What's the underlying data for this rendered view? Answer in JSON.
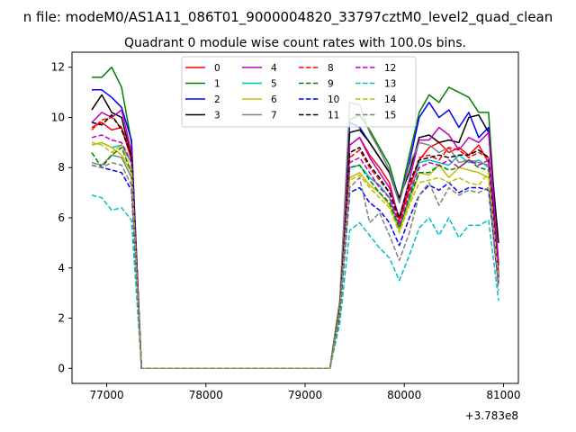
{
  "figure": {
    "suptitle": "n file: modeM0/AS1A11_086T01_9000004820_33797cztM0_level2_quad_clean",
    "title": "Quadrant 0 module wise count rates with 100.0s bins."
  },
  "chart_data": {
    "type": "line",
    "title": "Quadrant 0 module wise count rates with 100.0s bins.",
    "xlabel": "",
    "ylabel": "",
    "x_offset_label": "+3.783e8",
    "xlim": [
      76650,
      81150
    ],
    "ylim": [
      -0.6,
      12.6
    ],
    "xticks": [
      77000,
      78000,
      79000,
      80000,
      81000
    ],
    "xtick_labels": [
      "77000",
      "78000",
      "79000",
      "80000",
      "81000"
    ],
    "yticks": [
      0,
      2,
      4,
      6,
      8,
      10,
      12
    ],
    "ytick_labels": [
      "0",
      "2",
      "4",
      "6",
      "8",
      "10",
      "12"
    ],
    "grid": false,
    "legend": {
      "placement": "top-center",
      "columns": 4
    },
    "x": [
      76850,
      76950,
      77050,
      77150,
      77250,
      77350,
      77450,
      77550,
      77650,
      77750,
      77850,
      77950,
      78050,
      78150,
      78250,
      78350,
      78450,
      78550,
      78650,
      78750,
      78850,
      78950,
      79050,
      79150,
      79250,
      79350,
      79450,
      79550,
      79650,
      79750,
      79850,
      79950,
      80050,
      80150,
      80250,
      80350,
      80450,
      80550,
      80650,
      80750,
      80850,
      80950
    ],
    "series": [
      {
        "name": "0",
        "color": "#ff0000",
        "dash": "solid",
        "values": [
          9.6,
          9.8,
          9.5,
          9.6,
          8.3,
          0,
          0,
          0,
          0,
          0,
          0,
          0,
          0,
          0,
          0,
          0,
          0,
          0,
          0,
          0,
          0,
          0,
          0,
          0,
          0,
          2.5,
          8.9,
          9.2,
          8.5,
          8.0,
          7.4,
          5.9,
          7.2,
          8.3,
          8.8,
          9.0,
          8.6,
          8.8,
          8.5,
          8.9,
          8.2,
          3.8
        ]
      },
      {
        "name": "1",
        "color": "#008000",
        "dash": "solid",
        "values": [
          11.6,
          11.6,
          12.0,
          11.2,
          9.0,
          0,
          0,
          0,
          0,
          0,
          0,
          0,
          0,
          0,
          0,
          0,
          0,
          0,
          0,
          0,
          0,
          0,
          0,
          0,
          0,
          2.7,
          9.9,
          10.1,
          9.5,
          8.8,
          8.1,
          6.7,
          8.5,
          10.2,
          10.9,
          10.6,
          11.2,
          11.0,
          10.8,
          10.2,
          10.2,
          4.1
        ]
      },
      {
        "name": "2",
        "color": "#0000ff",
        "dash": "solid",
        "values": [
          11.1,
          11.1,
          10.8,
          10.4,
          9.1,
          0,
          0,
          0,
          0,
          0,
          0,
          0,
          0,
          0,
          0,
          0,
          0,
          0,
          0,
          0,
          0,
          0,
          0,
          0,
          0,
          2.6,
          9.8,
          9.6,
          9.0,
          8.4,
          7.8,
          6.6,
          8.2,
          10.0,
          10.6,
          10.0,
          10.3,
          9.6,
          10.2,
          9.2,
          9.6,
          3.6
        ]
      },
      {
        "name": "3",
        "color": "#000000",
        "dash": "solid",
        "values": [
          10.3,
          10.9,
          10.2,
          10.0,
          8.4,
          0,
          0,
          0,
          0,
          0,
          0,
          0,
          0,
          0,
          0,
          0,
          0,
          0,
          0,
          0,
          0,
          0,
          0,
          0,
          0,
          2.6,
          9.4,
          9.5,
          9.0,
          8.4,
          7.8,
          6.8,
          7.8,
          9.2,
          9.3,
          9.0,
          9.1,
          9.0,
          10.0,
          10.1,
          9.4,
          5.0
        ]
      },
      {
        "name": "4",
        "color": "#bf00bf",
        "dash": "solid",
        "values": [
          9.8,
          10.2,
          10.0,
          10.3,
          8.6,
          0,
          0,
          0,
          0,
          0,
          0,
          0,
          0,
          0,
          0,
          0,
          0,
          0,
          0,
          0,
          0,
          0,
          0,
          0,
          0,
          2.5,
          8.9,
          9.2,
          8.4,
          7.8,
          7.2,
          6.0,
          7.5,
          9.1,
          9.1,
          9.6,
          9.3,
          8.7,
          9.2,
          9.0,
          9.4,
          4.2
        ]
      },
      {
        "name": "5",
        "color": "#00bfbf",
        "dash": "solid",
        "values": [
          8.9,
          9.0,
          8.8,
          8.9,
          8.2,
          0,
          0,
          0,
          0,
          0,
          0,
          0,
          0,
          0,
          0,
          0,
          0,
          0,
          0,
          0,
          0,
          0,
          0,
          0,
          0,
          2.3,
          8.0,
          8.1,
          7.6,
          7.3,
          6.8,
          5.6,
          6.8,
          8.2,
          8.3,
          8.2,
          8.1,
          8.5,
          8.2,
          8.3,
          8.0,
          3.5
        ]
      },
      {
        "name": "6",
        "color": "#bfbf00",
        "dash": "solid",
        "values": [
          8.9,
          9.0,
          8.8,
          8.5,
          7.8,
          0,
          0,
          0,
          0,
          0,
          0,
          0,
          0,
          0,
          0,
          0,
          0,
          0,
          0,
          0,
          0,
          0,
          0,
          0,
          0,
          2.2,
          7.6,
          7.8,
          7.3,
          7.0,
          6.5,
          5.5,
          6.6,
          7.8,
          7.7,
          8.1,
          7.6,
          8.0,
          7.9,
          7.8,
          7.6,
          3.4
        ]
      },
      {
        "name": "7",
        "color": "#808080",
        "dash": "solid",
        "values": [
          8.2,
          8.1,
          8.5,
          8.4,
          7.6,
          0,
          0,
          0,
          0,
          0,
          0,
          0,
          0,
          0,
          0,
          0,
          0,
          0,
          0,
          0,
          0,
          0,
          0,
          0,
          0,
          2.7,
          10.6,
          10.5,
          9.4,
          8.7,
          7.9,
          6.6,
          8.1,
          9.0,
          8.9,
          8.6,
          8.8,
          8.2,
          8.3,
          8.2,
          8.1,
          3.6
        ]
      },
      {
        "name": "8",
        "color": "#ff0000",
        "dash": "dashed",
        "values": [
          9.5,
          9.9,
          10.0,
          9.6,
          8.6,
          0,
          0,
          0,
          0,
          0,
          0,
          0,
          0,
          0,
          0,
          0,
          0,
          0,
          0,
          0,
          0,
          0,
          0,
          0,
          0,
          2.4,
          8.4,
          8.7,
          8.0,
          7.5,
          7.0,
          5.8,
          7.1,
          8.4,
          8.5,
          8.3,
          8.8,
          8.7,
          8.4,
          8.6,
          8.4,
          3.7
        ]
      },
      {
        "name": "9",
        "color": "#008000",
        "dash": "dashed",
        "values": [
          8.6,
          8.0,
          8.5,
          8.8,
          7.8,
          0,
          0,
          0,
          0,
          0,
          0,
          0,
          0,
          0,
          0,
          0,
          0,
          0,
          0,
          0,
          0,
          0,
          0,
          0,
          0,
          2.3,
          8.0,
          8.1,
          7.5,
          7.0,
          6.6,
          5.6,
          6.8,
          7.8,
          7.8,
          8.1,
          7.9,
          8.0,
          8.3,
          8.0,
          7.9,
          3.5
        ]
      },
      {
        "name": "10",
        "color": "#0000ff",
        "dash": "dashed",
        "values": [
          8.1,
          8.0,
          7.9,
          7.8,
          7.1,
          0,
          0,
          0,
          0,
          0,
          0,
          0,
          0,
          0,
          0,
          0,
          0,
          0,
          0,
          0,
          0,
          0,
          0,
          0,
          0,
          2.1,
          7.0,
          7.2,
          6.6,
          6.3,
          5.8,
          4.9,
          6.0,
          6.9,
          7.3,
          7.1,
          7.4,
          7.0,
          7.2,
          7.2,
          7.1,
          3.3
        ]
      },
      {
        "name": "11",
        "color": "#000000",
        "dash": "dashed",
        "values": [
          9.8,
          9.7,
          10.1,
          9.5,
          8.5,
          0,
          0,
          0,
          0,
          0,
          0,
          0,
          0,
          0,
          0,
          0,
          0,
          0,
          0,
          0,
          0,
          0,
          0,
          0,
          0,
          2.4,
          8.6,
          8.8,
          8.1,
          7.6,
          7.0,
          6.0,
          7.4,
          8.3,
          8.4,
          8.5,
          8.4,
          8.5,
          8.5,
          8.7,
          8.4,
          3.6
        ]
      },
      {
        "name": "12",
        "color": "#bf00bf",
        "dash": "dashed",
        "values": [
          9.2,
          9.3,
          9.1,
          9.0,
          8.2,
          0,
          0,
          0,
          0,
          0,
          0,
          0,
          0,
          0,
          0,
          0,
          0,
          0,
          0,
          0,
          0,
          0,
          0,
          0,
          0,
          2.3,
          8.2,
          8.4,
          7.8,
          7.2,
          6.8,
          5.7,
          7.0,
          8.0,
          8.2,
          8.1,
          8.3,
          8.0,
          8.3,
          8.1,
          8.3,
          3.6
        ]
      },
      {
        "name": "13",
        "color": "#00bfbf",
        "dash": "dashed",
        "values": [
          6.9,
          6.8,
          6.3,
          6.4,
          5.9,
          0,
          0,
          0,
          0,
          0,
          0,
          0,
          0,
          0,
          0,
          0,
          0,
          0,
          0,
          0,
          0,
          0,
          0,
          0,
          0,
          1.8,
          5.5,
          5.8,
          5.3,
          4.8,
          4.4,
          3.5,
          4.5,
          5.6,
          6.0,
          5.3,
          6.0,
          5.2,
          5.7,
          5.7,
          5.9,
          2.7
        ]
      },
      {
        "name": "14",
        "color": "#bfbf00",
        "dash": "dashed",
        "values": [
          9.0,
          8.9,
          8.6,
          8.9,
          7.9,
          0,
          0,
          0,
          0,
          0,
          0,
          0,
          0,
          0,
          0,
          0,
          0,
          0,
          0,
          0,
          0,
          0,
          0,
          0,
          0,
          2.3,
          7.5,
          7.7,
          7.2,
          6.8,
          6.4,
          5.4,
          6.5,
          7.4,
          7.5,
          7.6,
          7.4,
          7.6,
          7.4,
          7.3,
          7.8,
          3.5
        ]
      },
      {
        "name": "15",
        "color": "#808080",
        "dash": "dashed",
        "values": [
          8.1,
          8.0,
          8.2,
          8.1,
          7.3,
          0,
          0,
          0,
          0,
          0,
          0,
          0,
          0,
          0,
          0,
          0,
          0,
          0,
          0,
          0,
          0,
          0,
          0,
          0,
          0,
          2.2,
          7.2,
          7.6,
          5.8,
          6.2,
          5.3,
          4.3,
          5.4,
          6.9,
          7.4,
          6.5,
          7.2,
          6.9,
          7.1,
          7.0,
          7.2,
          3.1
        ]
      }
    ]
  }
}
